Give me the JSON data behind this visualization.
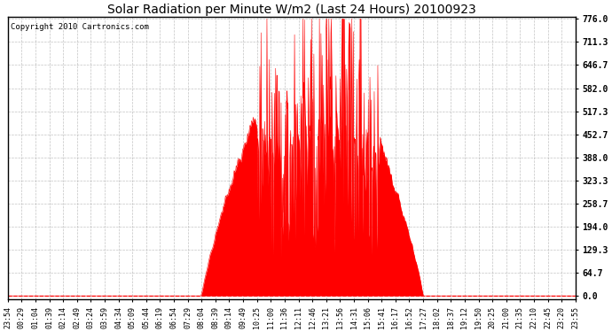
{
  "title": "Solar Radiation per Minute W/m2 (Last 24 Hours) 20100923",
  "copyright": "Copyright 2010 Cartronics.com",
  "y_max": 776.0,
  "y_min": 0.0,
  "y_ticks": [
    0.0,
    64.7,
    129.3,
    194.0,
    258.7,
    323.3,
    388.0,
    452.7,
    517.3,
    582.0,
    646.7,
    711.3,
    776.0
  ],
  "fill_color": "#FF0000",
  "line_color": "#FF0000",
  "background_color": "#FFFFFF",
  "grid_color": "#AAAAAA",
  "x_labels": [
    "23:54",
    "00:29",
    "01:04",
    "01:39",
    "02:14",
    "02:49",
    "03:24",
    "03:59",
    "04:34",
    "05:09",
    "05:44",
    "06:19",
    "06:54",
    "07:29",
    "08:04",
    "08:39",
    "09:14",
    "09:49",
    "10:25",
    "11:00",
    "11:36",
    "12:11",
    "12:46",
    "13:21",
    "13:56",
    "14:31",
    "15:06",
    "15:41",
    "16:17",
    "16:52",
    "17:27",
    "18:02",
    "18:37",
    "19:12",
    "19:50",
    "20:25",
    "21:00",
    "21:35",
    "22:10",
    "22:45",
    "23:20",
    "23:55"
  ]
}
